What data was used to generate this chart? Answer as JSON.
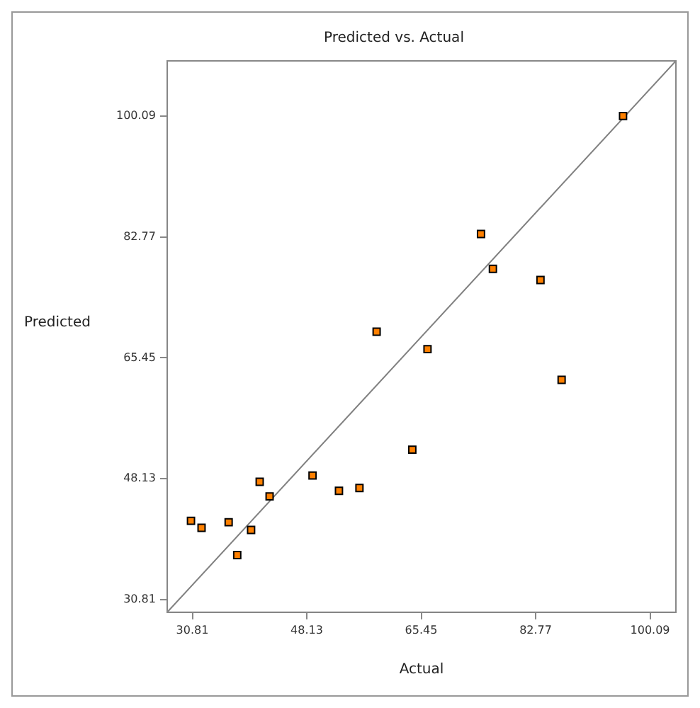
{
  "chart_data": {
    "type": "scatter",
    "title": "Predicted vs. Actual",
    "xlabel": "Actual",
    "ylabel": "Predicted",
    "xlim": [
      27,
      104
    ],
    "ylim": [
      29,
      108
    ],
    "xticks": [
      30.81,
      48.13,
      65.45,
      82.77,
      100.09
    ],
    "yticks": [
      30.81,
      48.13,
      65.45,
      82.77,
      100.09
    ],
    "grid": false,
    "legend": false,
    "marker": "square",
    "series": [
      {
        "color": "#ff8000",
        "x": [
          96.0,
          74.5,
          76.3,
          83.5,
          58.7,
          66.4,
          86.7,
          64.1,
          41.0,
          49.0,
          42.5,
          53.0,
          56.1,
          30.6,
          32.2,
          36.3,
          39.7,
          37.6
        ],
        "values": [
          100.1,
          83.2,
          78.2,
          76.6,
          69.2,
          66.7,
          62.3,
          52.3,
          47.7,
          48.6,
          45.6,
          46.4,
          46.8,
          42.1,
          41.1,
          41.9,
          40.8,
          37.2
        ]
      },
      {
        "type": "line",
        "color": "#808080",
        "marker": "none",
        "line_style": "solid",
        "x": [
          27,
          104
        ],
        "values": [
          29,
          108
        ]
      }
    ]
  }
}
